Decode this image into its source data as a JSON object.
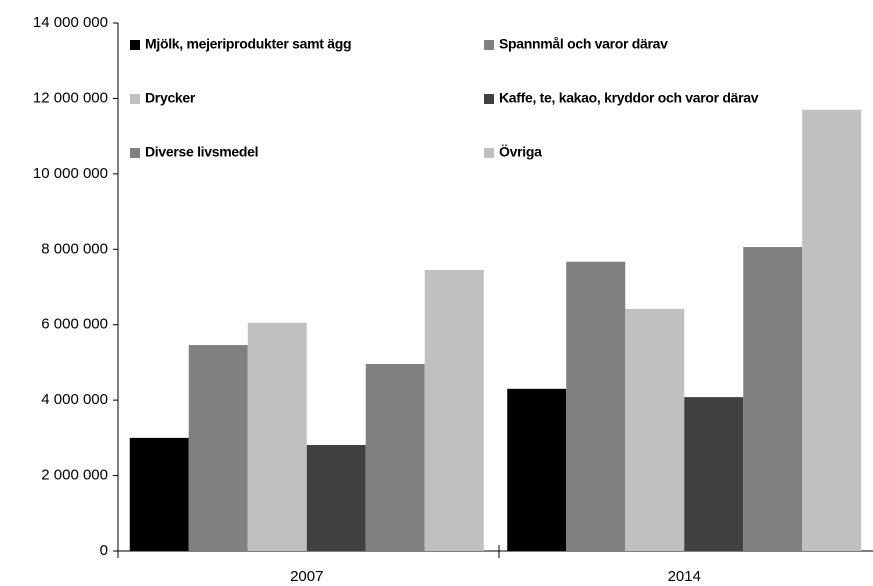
{
  "chart_data": {
    "type": "bar",
    "categories": [
      "2007",
      "2014"
    ],
    "series": [
      {
        "name": "Mjölk, mejeriprodukter samt ägg",
        "color": "#000000",
        "values": [
          3000000,
          4300000
        ]
      },
      {
        "name": "Spannmål och varor därav",
        "color": "#808080",
        "values": [
          5460000,
          7670000
        ]
      },
      {
        "name": "Drycker",
        "color": "#c0c0c0",
        "values": [
          6050000,
          6420000
        ]
      },
      {
        "name": "Kaffe, te, kakao, kryddor och varor därav",
        "color": "#404040",
        "values": [
          2810000,
          4080000
        ]
      },
      {
        "name": "Diverse livsmedel",
        "color": "#808080",
        "values": [
          4960000,
          8060000
        ]
      },
      {
        "name": "Övriga",
        "color": "#c0c0c0",
        "values": [
          7450000,
          11700000
        ]
      }
    ],
    "ylim": [
      0,
      14000000
    ],
    "yticks": [
      0,
      {
        "value": 2000000,
        "label": "2 000 000"
      },
      {
        "value": 4000000,
        "label": "4 000 000"
      },
      {
        "value": 6000000,
        "label": "6 000 000"
      },
      {
        "value": 8000000,
        "label": "8 000 000"
      },
      {
        "value": 10000000,
        "label": "10 000 000"
      },
      {
        "value": 12000000,
        "label": "12 000 000"
      },
      {
        "value": 14000000,
        "label": "14 000 000"
      }
    ],
    "grid": false,
    "legend": "top-left"
  }
}
